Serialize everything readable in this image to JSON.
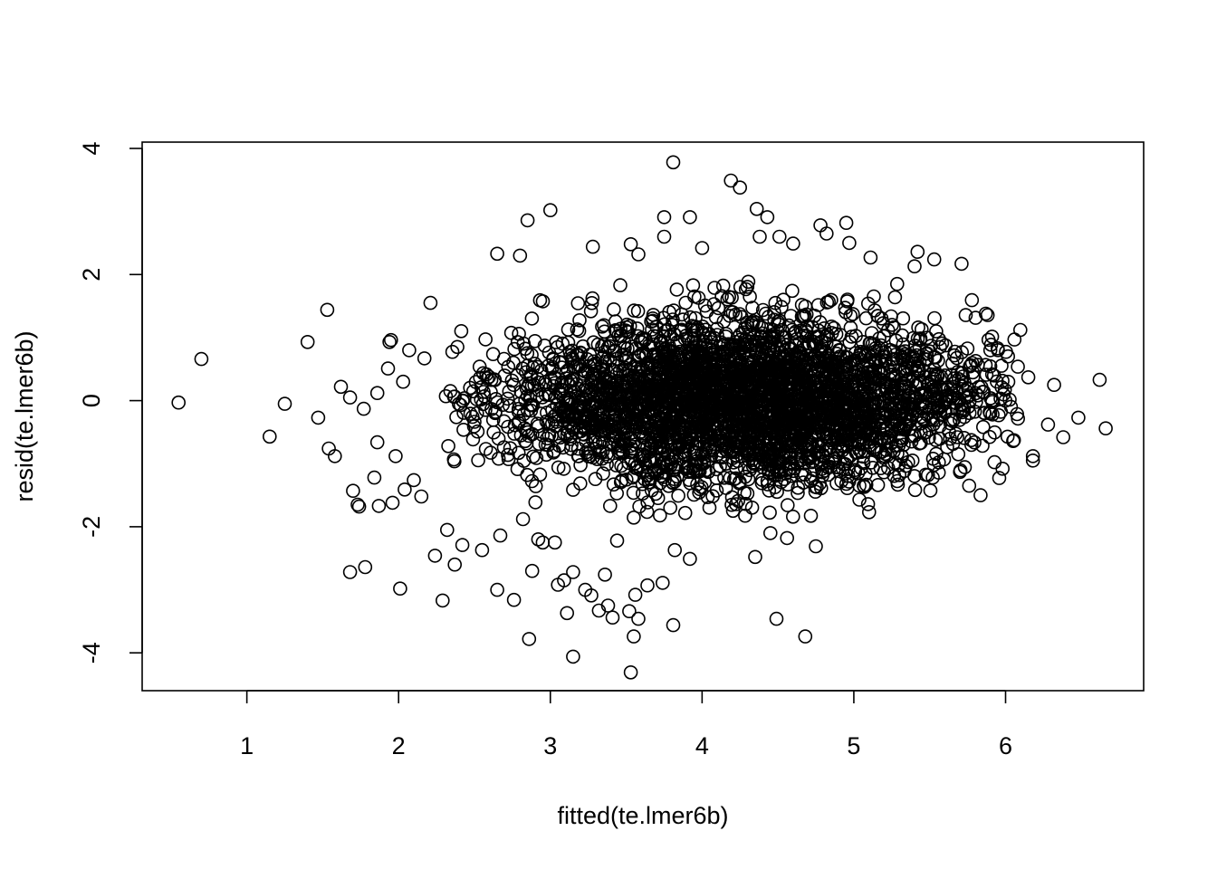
{
  "chart_data": {
    "type": "scatter",
    "title": "",
    "xlabel": "fitted(te.lmer6b)",
    "ylabel": "resid(te.lmer6b)",
    "xlim": [
      0.31,
      6.91
    ],
    "ylim": [
      -4.6,
      4.1
    ],
    "xticks": [
      1,
      2,
      3,
      4,
      5,
      6
    ],
    "yticks": [
      -4,
      -2,
      0,
      2,
      4
    ],
    "grid": false,
    "legend": "none",
    "marker": "open-circle",
    "marker_color": "#000000",
    "outliers": [
      {
        "x": 0.55,
        "y": -0.03
      },
      {
        "x": 0.7,
        "y": 0.66
      },
      {
        "x": 1.15,
        "y": -0.57
      },
      {
        "x": 1.25,
        "y": -0.05
      },
      {
        "x": 1.4,
        "y": 0.93
      },
      {
        "x": 1.47,
        "y": -0.27
      },
      {
        "x": 1.53,
        "y": 1.44
      },
      {
        "x": 1.54,
        "y": -0.76
      },
      {
        "x": 1.58,
        "y": -0.88
      },
      {
        "x": 1.62,
        "y": 0.22
      },
      {
        "x": 1.68,
        "y": 0.05
      },
      {
        "x": 1.68,
        "y": -2.72
      },
      {
        "x": 1.7,
        "y": -1.43
      },
      {
        "x": 1.73,
        "y": -1.65
      },
      {
        "x": 1.74,
        "y": -1.68
      },
      {
        "x": 1.77,
        "y": -0.13
      },
      {
        "x": 1.78,
        "y": -2.64
      },
      {
        "x": 1.84,
        "y": -1.22
      },
      {
        "x": 1.86,
        "y": -0.66
      },
      {
        "x": 1.86,
        "y": 0.12
      },
      {
        "x": 1.87,
        "y": -1.67
      },
      {
        "x": 1.93,
        "y": 0.51
      },
      {
        "x": 1.94,
        "y": 0.93
      },
      {
        "x": 1.95,
        "y": 0.96
      },
      {
        "x": 1.96,
        "y": -1.62
      },
      {
        "x": 1.98,
        "y": -0.88
      },
      {
        "x": 2.01,
        "y": -2.98
      },
      {
        "x": 2.03,
        "y": 0.3
      },
      {
        "x": 2.04,
        "y": -1.41
      },
      {
        "x": 2.07,
        "y": 0.8
      },
      {
        "x": 2.1,
        "y": -1.26
      },
      {
        "x": 2.15,
        "y": -1.52
      },
      {
        "x": 2.17,
        "y": 0.67
      },
      {
        "x": 2.21,
        "y": 1.55
      },
      {
        "x": 2.24,
        "y": -2.46
      },
      {
        "x": 2.29,
        "y": -3.17
      },
      {
        "x": 2.32,
        "y": -2.05
      },
      {
        "x": 2.37,
        "y": -2.6
      },
      {
        "x": 2.42,
        "y": -2.29
      },
      {
        "x": 2.55,
        "y": -2.37
      },
      {
        "x": 2.65,
        "y": -3.0
      },
      {
        "x": 2.67,
        "y": -2.14
      },
      {
        "x": 2.76,
        "y": -3.16
      },
      {
        "x": 2.82,
        "y": -1.88
      },
      {
        "x": 2.86,
        "y": -3.78
      },
      {
        "x": 2.88,
        "y": -2.7
      },
      {
        "x": 2.92,
        "y": -2.2
      },
      {
        "x": 2.95,
        "y": -2.25
      },
      {
        "x": 3.03,
        "y": -2.25
      },
      {
        "x": 3.05,
        "y": -2.92
      },
      {
        "x": 3.09,
        "y": -2.85
      },
      {
        "x": 3.11,
        "y": -3.37
      },
      {
        "x": 3.15,
        "y": -4.06
      },
      {
        "x": 3.15,
        "y": -2.72
      },
      {
        "x": 3.23,
        "y": -3.0
      },
      {
        "x": 3.27,
        "y": -3.09
      },
      {
        "x": 3.32,
        "y": -3.33
      },
      {
        "x": 3.36,
        "y": -2.76
      },
      {
        "x": 3.38,
        "y": -3.25
      },
      {
        "x": 3.41,
        "y": -3.44
      },
      {
        "x": 3.44,
        "y": -2.22
      },
      {
        "x": 3.52,
        "y": -3.34
      },
      {
        "x": 3.53,
        "y": -4.31
      },
      {
        "x": 3.55,
        "y": -3.74
      },
      {
        "x": 3.56,
        "y": -3.08
      },
      {
        "x": 3.58,
        "y": -3.46
      },
      {
        "x": 3.64,
        "y": -2.93
      },
      {
        "x": 3.74,
        "y": -2.89
      },
      {
        "x": 3.81,
        "y": -3.56
      },
      {
        "x": 3.82,
        "y": -2.37
      },
      {
        "x": 3.92,
        "y": -2.51
      },
      {
        "x": 4.35,
        "y": -2.48
      },
      {
        "x": 4.45,
        "y": -2.1
      },
      {
        "x": 4.49,
        "y": -3.46
      },
      {
        "x": 4.56,
        "y": -2.18
      },
      {
        "x": 4.68,
        "y": -3.74
      },
      {
        "x": 4.75,
        "y": -2.31
      },
      {
        "x": 2.85,
        "y": 2.86
      },
      {
        "x": 3.0,
        "y": 3.02
      },
      {
        "x": 3.81,
        "y": 3.78
      },
      {
        "x": 4.19,
        "y": 3.49
      },
      {
        "x": 4.25,
        "y": 3.38
      },
      {
        "x": 4.36,
        "y": 3.04
      },
      {
        "x": 4.43,
        "y": 2.91
      },
      {
        "x": 3.75,
        "y": 2.91
      },
      {
        "x": 3.92,
        "y": 2.91
      },
      {
        "x": 2.65,
        "y": 2.33
      },
      {
        "x": 2.8,
        "y": 2.3
      },
      {
        "x": 3.28,
        "y": 2.44
      },
      {
        "x": 3.53,
        "y": 2.48
      },
      {
        "x": 3.58,
        "y": 2.32
      },
      {
        "x": 3.75,
        "y": 2.6
      },
      {
        "x": 4.0,
        "y": 2.42
      },
      {
        "x": 4.38,
        "y": 2.6
      },
      {
        "x": 4.51,
        "y": 2.6
      },
      {
        "x": 4.6,
        "y": 2.49
      },
      {
        "x": 4.78,
        "y": 2.78
      },
      {
        "x": 4.82,
        "y": 2.65
      },
      {
        "x": 4.95,
        "y": 2.82
      },
      {
        "x": 4.97,
        "y": 2.5
      },
      {
        "x": 5.11,
        "y": 2.27
      },
      {
        "x": 5.42,
        "y": 2.36
      },
      {
        "x": 5.53,
        "y": 2.24
      },
      {
        "x": 5.71,
        "y": 2.17
      },
      {
        "x": 5.4,
        "y": 2.13
      },
      {
        "x": 5.87,
        "y": 1.38
      },
      {
        "x": 5.9,
        "y": 0.8
      },
      {
        "x": 6.15,
        "y": 0.37
      },
      {
        "x": 6.32,
        "y": 0.25
      },
      {
        "x": 6.62,
        "y": 0.33
      },
      {
        "x": 6.48,
        "y": -0.27
      },
      {
        "x": 6.66,
        "y": -0.44
      },
      {
        "x": 6.38,
        "y": -0.58
      },
      {
        "x": 6.28,
        "y": -0.38
      },
      {
        "x": 6.18,
        "y": -0.88
      },
      {
        "x": 6.18,
        "y": -0.95
      },
      {
        "x": 6.05,
        "y": -0.64
      },
      {
        "x": 5.98,
        "y": -1.08
      },
      {
        "x": 5.76,
        "y": -1.35
      },
      {
        "x": 5.7,
        "y": -1.13
      },
      {
        "x": 5.56,
        "y": -0.98
      },
      {
        "x": 5.52,
        "y": -1.22
      },
      {
        "x": 5.3,
        "y": -1.18
      }
    ],
    "cloud": {
      "note": "dense cluster of several thousand overlapping points",
      "x_range": [
        2.4,
        6.0
      ],
      "y_range": [
        -1.6,
        1.6
      ],
      "center_x": 4.3,
      "center_y": 0.0
    }
  }
}
